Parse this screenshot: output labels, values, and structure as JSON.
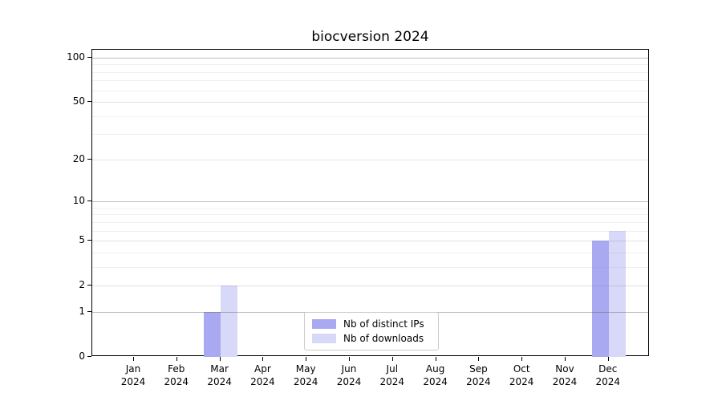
{
  "chart_data": {
    "type": "bar",
    "title": "biocversion 2024",
    "categories": [
      "Jan",
      "Feb",
      "Mar",
      "Apr",
      "May",
      "Jun",
      "Jul",
      "Aug",
      "Sep",
      "Oct",
      "Nov",
      "Dec"
    ],
    "x_year_suffix": "2024",
    "series": [
      {
        "name": "Nb of distinct IPs",
        "color": "#a9a9f2",
        "values": [
          0,
          0,
          1,
          0,
          0,
          0,
          0,
          0,
          0,
          0,
          0,
          5
        ]
      },
      {
        "name": "Nb of downloads",
        "color": "#d8d8f8",
        "values": [
          0,
          0,
          2,
          0,
          0,
          0,
          0,
          0,
          0,
          0,
          0,
          6
        ]
      }
    ],
    "y_axis": {
      "scale": "log1p",
      "labeled_ticks": [
        0,
        1,
        2,
        5,
        10,
        20,
        50,
        100
      ],
      "power10_gridlines": [
        1,
        10,
        100
      ],
      "labeled_minor_gridlines": [
        2,
        5,
        20,
        50
      ],
      "minor_gridlines": [
        3,
        4,
        6,
        7,
        8,
        9,
        30,
        40,
        60,
        70,
        80,
        90
      ],
      "ylim": [
        0,
        113
      ]
    },
    "xlabel": "",
    "ylabel": "",
    "grid": true,
    "legend_position": "lower center",
    "axis_color": "#000000",
    "background_color": "#ffffff"
  }
}
